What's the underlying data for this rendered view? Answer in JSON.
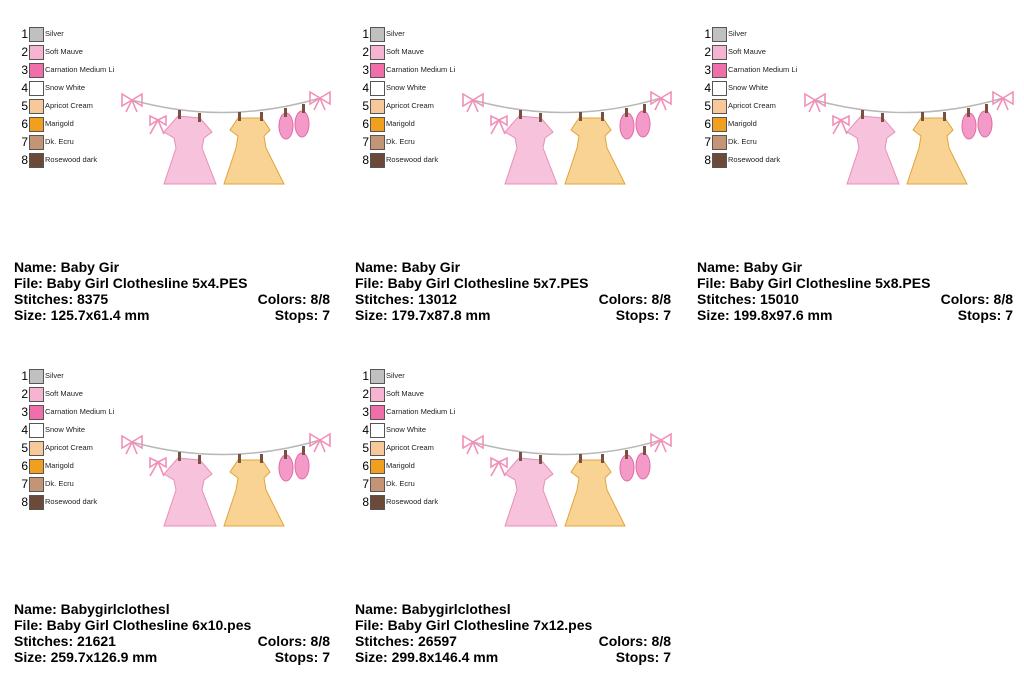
{
  "palette": [
    {
      "number": 1,
      "name": "Silver",
      "color": "#c0c0c0"
    },
    {
      "number": 2,
      "name": "Soft Mauve",
      "color": "#f7b3d2"
    },
    {
      "number": 3,
      "name": "Carnation Medium Li",
      "color": "#f06fab"
    },
    {
      "number": 4,
      "name": "Snow White",
      "color": "#ffffff"
    },
    {
      "number": 5,
      "name": "Apricot Cream",
      "color": "#f7c99a"
    },
    {
      "number": 6,
      "name": "Marigold",
      "color": "#f0a01e"
    },
    {
      "number": 7,
      "name": "Dk. Ecru",
      "color": "#c49477"
    },
    {
      "number": 8,
      "name": "Rosewood dark",
      "color": "#6b4a3a"
    }
  ],
  "cards": [
    {
      "name": "Name: Baby Gir",
      "file": "File: Baby Girl Clothesline 5x4.PES",
      "stitches": "Stitches: 8375",
      "colors": "Colors: 8/8",
      "size": "Size: 125.7x61.4 mm",
      "stops": "Stops: 7"
    },
    {
      "name": "Name: Baby Gir",
      "file": "File: Baby Girl Clothesline 5x7.PES",
      "stitches": "Stitches: 13012",
      "colors": "Colors: 8/8",
      "size": "Size: 179.7x87.8 mm",
      "stops": "Stops: 7"
    },
    {
      "name": "Name: Baby Gir",
      "file": "File: Baby Girl Clothesline 5x8.PES",
      "stitches": "Stitches: 15010",
      "colors": "Colors: 8/8",
      "size": "Size: 199.8x97.6 mm",
      "stops": "Stops: 7"
    },
    {
      "name": "Name: Babygirlclothesl",
      "file": "File: Baby Girl Clothesline 6x10.pes",
      "stitches": "Stitches: 21621",
      "colors": "Colors: 8/8",
      "size": "Size: 259.7x126.9 mm",
      "stops": "Stops: 7"
    },
    {
      "name": "Name: Babygirlclothesl",
      "file": "File: Baby Girl Clothesline 7x12.pes",
      "stitches": "Stitches: 26597",
      "colors": "Colors: 8/8",
      "size": "Size: 299.8x146.4 mm",
      "stops": "Stops: 7"
    }
  ]
}
